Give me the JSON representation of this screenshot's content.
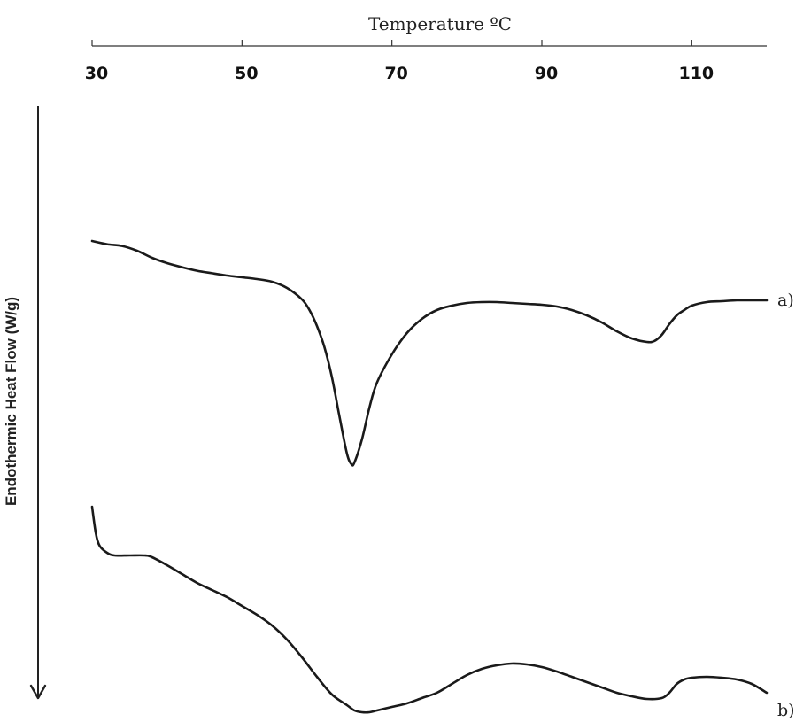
{
  "chart_data": {
    "type": "line",
    "xlabel": "Temperature ºC",
    "ylabel": "Endothermic Heat Flow (W/g)",
    "xlim": [
      30,
      120
    ],
    "xticks": [
      30,
      50,
      70,
      90,
      110
    ],
    "x_axis_position": "top",
    "y_axis_direction_arrow": "down",
    "grid": false,
    "series": [
      {
        "name": "a)",
        "color": "#1a1a1a",
        "points": [
          [
            30,
            0.0
          ],
          [
            32,
            0.18
          ],
          [
            34,
            0.28
          ],
          [
            36,
            0.55
          ],
          [
            38,
            0.95
          ],
          [
            40,
            1.25
          ],
          [
            42,
            1.48
          ],
          [
            44,
            1.68
          ],
          [
            46,
            1.82
          ],
          [
            48,
            1.95
          ],
          [
            50,
            2.05
          ],
          [
            52,
            2.15
          ],
          [
            54,
            2.3
          ],
          [
            56,
            2.65
          ],
          [
            58,
            3.3
          ],
          [
            59,
            3.9
          ],
          [
            60,
            4.8
          ],
          [
            61,
            6.0
          ],
          [
            62,
            7.7
          ],
          [
            63,
            9.9
          ],
          [
            64,
            12.0
          ],
          [
            64.6,
            12.6
          ],
          [
            65,
            12.5
          ],
          [
            66,
            11.2
          ],
          [
            67,
            9.4
          ],
          [
            68,
            8.0
          ],
          [
            70,
            6.4
          ],
          [
            72,
            5.2
          ],
          [
            74,
            4.4
          ],
          [
            76,
            3.9
          ],
          [
            78,
            3.65
          ],
          [
            80,
            3.5
          ],
          [
            82,
            3.45
          ],
          [
            84,
            3.45
          ],
          [
            86,
            3.5
          ],
          [
            88,
            3.55
          ],
          [
            90,
            3.6
          ],
          [
            92,
            3.7
          ],
          [
            94,
            3.9
          ],
          [
            96,
            4.2
          ],
          [
            98,
            4.6
          ],
          [
            100,
            5.1
          ],
          [
            102,
            5.5
          ],
          [
            104,
            5.7
          ],
          [
            105,
            5.65
          ],
          [
            106,
            5.3
          ],
          [
            107,
            4.7
          ],
          [
            108,
            4.2
          ],
          [
            109,
            3.9
          ],
          [
            110,
            3.65
          ],
          [
            112,
            3.45
          ],
          [
            114,
            3.4
          ],
          [
            116,
            3.35
          ],
          [
            118,
            3.35
          ],
          [
            120,
            3.35
          ]
        ]
      },
      {
        "name": "b)",
        "color": "#1a1a1a",
        "points": [
          [
            30,
            15.0
          ],
          [
            30.5,
            16.5
          ],
          [
            31,
            17.2
          ],
          [
            32,
            17.6
          ],
          [
            33,
            17.75
          ],
          [
            35,
            17.75
          ],
          [
            37,
            17.75
          ],
          [
            38,
            17.85
          ],
          [
            40,
            18.3
          ],
          [
            42,
            18.8
          ],
          [
            44,
            19.3
          ],
          [
            46,
            19.7
          ],
          [
            48,
            20.1
          ],
          [
            50,
            20.6
          ],
          [
            52,
            21.1
          ],
          [
            54,
            21.7
          ],
          [
            56,
            22.5
          ],
          [
            58,
            23.5
          ],
          [
            60,
            24.6
          ],
          [
            62,
            25.6
          ],
          [
            64,
            26.2
          ],
          [
            65,
            26.5
          ],
          [
            66,
            26.6
          ],
          [
            67,
            26.6
          ],
          [
            68,
            26.5
          ],
          [
            70,
            26.3
          ],
          [
            72,
            26.1
          ],
          [
            74,
            25.8
          ],
          [
            76,
            25.5
          ],
          [
            78,
            25.0
          ],
          [
            80,
            24.5
          ],
          [
            82,
            24.15
          ],
          [
            84,
            23.95
          ],
          [
            86,
            23.85
          ],
          [
            88,
            23.9
          ],
          [
            90,
            24.05
          ],
          [
            92,
            24.3
          ],
          [
            94,
            24.6
          ],
          [
            96,
            24.9
          ],
          [
            98,
            25.2
          ],
          [
            100,
            25.5
          ],
          [
            102,
            25.7
          ],
          [
            104,
            25.85
          ],
          [
            106,
            25.8
          ],
          [
            107,
            25.5
          ],
          [
            108,
            25.0
          ],
          [
            109,
            24.75
          ],
          [
            110,
            24.65
          ],
          [
            112,
            24.6
          ],
          [
            114,
            24.65
          ],
          [
            116,
            24.75
          ],
          [
            118,
            25.0
          ],
          [
            120,
            25.5
          ]
        ]
      }
    ]
  }
}
